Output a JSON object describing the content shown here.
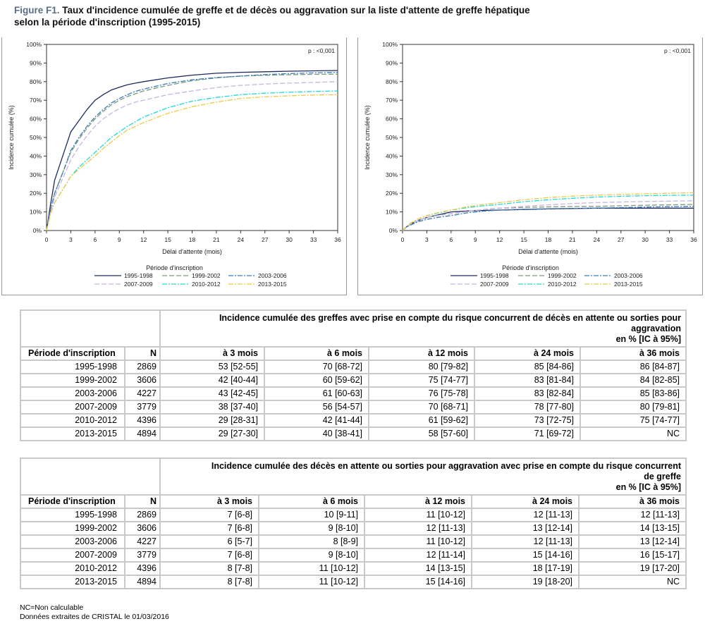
{
  "figure": {
    "title_prefix": "Figure F1.",
    "title_line1": "Taux d'incidence cumulée de greffe et de décès ou aggravation sur la liste d'attente de greffe hépatique",
    "title_line2": "selon la période d'inscription (1995-2015)"
  },
  "colors": {
    "1995-1998": "#1d2a5c",
    "1999-2002": "#7a9a7a",
    "2003-2006": "#3d7ab8",
    "2007-2009": "#c8b4e0",
    "2010-2012": "#20d8d8",
    "2013-2015": "#f2c842",
    "axis": "#333333",
    "panel_border": "#9a9a9a",
    "table_border": "#c9c9c9"
  },
  "chart_data": [
    {
      "type": "line",
      "panel": "left",
      "pvalue": "p : <0,001",
      "xlabel": "Délai d'attente (mois)",
      "ylabel": "Incidence cumulée (%)",
      "xlim": [
        0,
        36
      ],
      "ylim": [
        0,
        100
      ],
      "xticks": [
        "0",
        "3",
        "6",
        "9",
        "12",
        "15",
        "18",
        "21",
        "24",
        "27",
        "30",
        "33",
        "36"
      ],
      "yticks": [
        "0%",
        "10%",
        "20%",
        "30%",
        "40%",
        "50%",
        "60%",
        "70%",
        "80%",
        "90%",
        "100%"
      ],
      "legend_title": "Période d'inscription",
      "series": [
        {
          "name": "1995-1998",
          "dash": "solid",
          "x": [
            0,
            0.5,
            1,
            2,
            3,
            4,
            5,
            6,
            7,
            8,
            9,
            10,
            11,
            12,
            15,
            18,
            21,
            24,
            27,
            30,
            33,
            36
          ],
          "y": [
            0,
            14,
            27,
            40,
            53,
            59,
            65,
            70,
            73,
            75.5,
            77,
            78.3,
            79.2,
            80,
            82,
            83.5,
            84.5,
            85,
            85.3,
            85.6,
            85.8,
            86
          ]
        },
        {
          "name": "1999-2002",
          "dash": "long",
          "x": [
            0,
            0.5,
            1,
            2,
            3,
            4,
            5,
            6,
            7,
            8,
            9,
            10,
            11,
            12,
            15,
            18,
            21,
            24,
            27,
            30,
            33,
            36
          ],
          "y": [
            0,
            11,
            20,
            31,
            42,
            49,
            55,
            60,
            64,
            67.5,
            70,
            72,
            73.5,
            75,
            78,
            80.5,
            82,
            83,
            83.4,
            83.7,
            83.9,
            84
          ]
        },
        {
          "name": "2003-2006",
          "dash": "dashdot",
          "x": [
            0,
            0.5,
            1,
            2,
            3,
            4,
            5,
            6,
            7,
            8,
            9,
            10,
            11,
            12,
            15,
            18,
            21,
            24,
            27,
            30,
            33,
            36
          ],
          "y": [
            0,
            11,
            20,
            31,
            43,
            50,
            56,
            61,
            65,
            68.5,
            71,
            73,
            74.8,
            76,
            79,
            81,
            82.2,
            83,
            83.8,
            84.3,
            84.7,
            85
          ]
        },
        {
          "name": "2007-2009",
          "dash": "long",
          "x": [
            0,
            0.5,
            1,
            2,
            3,
            4,
            5,
            6,
            7,
            8,
            9,
            10,
            11,
            12,
            15,
            18,
            21,
            24,
            27,
            30,
            33,
            36
          ],
          "y": [
            0,
            10,
            18,
            28,
            38,
            45,
            51,
            56,
            60,
            63,
            65.5,
            67.5,
            69,
            70,
            73,
            75,
            76.8,
            78,
            78.7,
            79.2,
            79.6,
            80
          ]
        },
        {
          "name": "2010-2012",
          "dash": "dashdot",
          "x": [
            0,
            0.5,
            1,
            2,
            3,
            4,
            5,
            6,
            7,
            8,
            9,
            10,
            11,
            12,
            15,
            18,
            21,
            24,
            27,
            30,
            33,
            36
          ],
          "y": [
            0,
            9,
            15,
            22,
            29,
            34,
            38,
            42,
            46,
            50,
            53,
            56,
            58.5,
            61,
            66,
            69.5,
            71.5,
            73,
            73.8,
            74.3,
            74.7,
            75
          ]
        },
        {
          "name": "2013-2015",
          "dash": "dashdot",
          "x": [
            0,
            0.5,
            1,
            2,
            3,
            4,
            5,
            6,
            7,
            8,
            9,
            10,
            11,
            12,
            15,
            18,
            21,
            24,
            27,
            30,
            33,
            36
          ],
          "y": [
            0,
            9,
            15,
            22,
            29,
            33,
            36.5,
            40,
            44,
            47.5,
            51,
            54,
            56,
            58,
            63,
            66.5,
            69,
            71,
            71.8,
            72.4,
            72.8,
            73
          ]
        }
      ]
    },
    {
      "type": "line",
      "panel": "right",
      "pvalue": "p : <0,001",
      "xlabel": "Délai d'attente (mois)",
      "ylabel": "Incidence cumulée (%)",
      "xlim": [
        0,
        36
      ],
      "ylim": [
        0,
        100
      ],
      "xticks": [
        "0",
        "3",
        "6",
        "9",
        "12",
        "15",
        "18",
        "21",
        "24",
        "27",
        "30",
        "33",
        "36"
      ],
      "yticks": [
        "0%",
        "10%",
        "20%",
        "30%",
        "40%",
        "50%",
        "60%",
        "70%",
        "80%",
        "90%",
        "100%"
      ],
      "legend_title": "Période d'inscription",
      "series": [
        {
          "name": "1995-1998",
          "dash": "solid",
          "x": [
            0,
            0.5,
            1,
            2,
            3,
            4,
            5,
            6,
            8,
            10,
            12,
            15,
            18,
            21,
            24,
            27,
            30,
            33,
            36
          ],
          "y": [
            0,
            2,
            3.5,
            5.5,
            7,
            8,
            9,
            10,
            10.5,
            10.8,
            11,
            11.3,
            11.6,
            11.8,
            12,
            12,
            12,
            12,
            12
          ]
        },
        {
          "name": "1999-2002",
          "dash": "long",
          "x": [
            0,
            0.5,
            1,
            2,
            3,
            4,
            5,
            6,
            8,
            10,
            12,
            15,
            18,
            21,
            24,
            27,
            30,
            33,
            36
          ],
          "y": [
            0,
            2,
            3.5,
            5.5,
            7,
            7.8,
            8.5,
            9,
            10.2,
            11.2,
            12,
            12.4,
            12.7,
            12.9,
            13,
            13.3,
            13.6,
            13.8,
            14
          ]
        },
        {
          "name": "2003-2006",
          "dash": "dashdot",
          "x": [
            0,
            0.5,
            1,
            2,
            3,
            4,
            5,
            6,
            8,
            10,
            12,
            15,
            18,
            21,
            24,
            27,
            30,
            33,
            36
          ],
          "y": [
            0,
            1.8,
            3,
            4.8,
            6,
            6.8,
            7.5,
            8,
            9.5,
            10.4,
            11,
            11.4,
            11.7,
            11.9,
            12,
            12.3,
            12.6,
            12.8,
            13
          ]
        },
        {
          "name": "2007-2009",
          "dash": "long",
          "x": [
            0,
            0.5,
            1,
            2,
            3,
            4,
            5,
            6,
            8,
            10,
            12,
            15,
            18,
            21,
            24,
            27,
            30,
            33,
            36
          ],
          "y": [
            0,
            2,
            3.5,
            5.5,
            7,
            7.8,
            8.5,
            9,
            10.3,
            11.3,
            12,
            13,
            13.8,
            14.5,
            15,
            15.3,
            15.6,
            15.8,
            16
          ]
        },
        {
          "name": "2010-2012",
          "dash": "dashdot",
          "x": [
            0,
            0.5,
            1,
            2,
            3,
            4,
            5,
            6,
            8,
            10,
            12,
            15,
            18,
            21,
            24,
            27,
            30,
            33,
            36
          ],
          "y": [
            0,
            2.3,
            4,
            6.3,
            8,
            9,
            10,
            11,
            12.3,
            13.3,
            14,
            15.5,
            16.5,
            17.3,
            18,
            18.4,
            18.7,
            18.9,
            19
          ]
        },
        {
          "name": "2013-2015",
          "dash": "dashdot",
          "x": [
            0,
            0.5,
            1,
            2,
            3,
            4,
            5,
            6,
            8,
            10,
            12,
            15,
            18,
            21,
            24,
            27,
            30,
            33,
            36
          ],
          "y": [
            0,
            2.3,
            4,
            6.3,
            8,
            9.2,
            10.2,
            11,
            12.8,
            14,
            15,
            16.5,
            17.7,
            18.5,
            19,
            19.4,
            19.7,
            20,
            20.3
          ]
        }
      ]
    }
  ],
  "table_greffe": {
    "caption_line1": "Incidence cumulée des greffes avec prise en compte du risque concurrent de décès en attente ou sorties pour",
    "caption_line2": "aggravation",
    "caption_line3": "en % [IC à 95%]",
    "col_period": "Période d'inscription",
    "col_n": "N",
    "cols": [
      "à 3 mois",
      "à 6 mois",
      "à 12 mois",
      "à 24 mois",
      "à 36 mois"
    ],
    "rows": [
      {
        "period": "1995-1998",
        "n": "2869",
        "values": [
          "53 [52-55]",
          "70 [68-72]",
          "80 [79-82]",
          "85 [84-86]",
          "86 [84-87]"
        ]
      },
      {
        "period": "1999-2002",
        "n": "3606",
        "values": [
          "42 [40-44]",
          "60 [59-62]",
          "75 [74-77]",
          "83 [81-84]",
          "84 [82-85]"
        ]
      },
      {
        "period": "2003-2006",
        "n": "4227",
        "values": [
          "43 [42-45]",
          "61 [60-63]",
          "76 [75-78]",
          "83 [82-84]",
          "85 [83-86]"
        ]
      },
      {
        "period": "2007-2009",
        "n": "3779",
        "values": [
          "38 [37-40]",
          "56 [54-57]",
          "70 [68-71]",
          "78 [77-80]",
          "80 [79-81]"
        ]
      },
      {
        "period": "2010-2012",
        "n": "4396",
        "values": [
          "29 [28-31]",
          "42 [41-44]",
          "61 [59-62]",
          "73 [72-75]",
          "75 [74-77]"
        ]
      },
      {
        "period": "2013-2015",
        "n": "4894",
        "values": [
          "29 [27-30]",
          "40 [38-41]",
          "58 [57-60]",
          "71 [69-72]",
          "NC"
        ]
      }
    ]
  },
  "table_deces": {
    "caption_line1": "Incidence cumulée des décès en attente ou sorties pour aggravation avec prise en compte du risque concurrent",
    "caption_line2": "de greffe",
    "caption_line3": "en % [IC à 95%]",
    "col_period": "Période d'inscription",
    "col_n": "N",
    "cols": [
      "à 3 mois",
      "à 6 mois",
      "à 12 mois",
      "à 24 mois",
      "à 36 mois"
    ],
    "rows": [
      {
        "period": "1995-1998",
        "n": "2869",
        "values": [
          "7 [6-8]",
          "10 [9-11]",
          "11 [10-12]",
          "12 [11-13]",
          "12 [11-13]"
        ]
      },
      {
        "period": "1999-2002",
        "n": "3606",
        "values": [
          "7 [6-8]",
          "9 [8-10]",
          "12 [11-13]",
          "13 [12-14]",
          "14 [13-15]"
        ]
      },
      {
        "period": "2003-2006",
        "n": "4227",
        "values": [
          "6 [5-7]",
          "8 [8-9]",
          "11 [10-12]",
          "12 [11-13]",
          "13 [12-14]"
        ]
      },
      {
        "period": "2007-2009",
        "n": "3779",
        "values": [
          "7 [6-8]",
          "9 [8-10]",
          "12 [11-14]",
          "15 [14-16]",
          "16 [15-17]"
        ]
      },
      {
        "period": "2010-2012",
        "n": "4396",
        "values": [
          "8 [7-8]",
          "11 [10-12]",
          "14 [13-15]",
          "18 [17-19]",
          "19 [17-20]"
        ]
      },
      {
        "period": "2013-2015",
        "n": "4894",
        "values": [
          "8 [7-8]",
          "11 [10-12]",
          "15 [14-16]",
          "19 [18-20]",
          "NC"
        ]
      }
    ]
  },
  "footnotes": {
    "nc": "NC=Non calculable",
    "source": "Données extraites de CRISTAL le 01/03/2016"
  }
}
